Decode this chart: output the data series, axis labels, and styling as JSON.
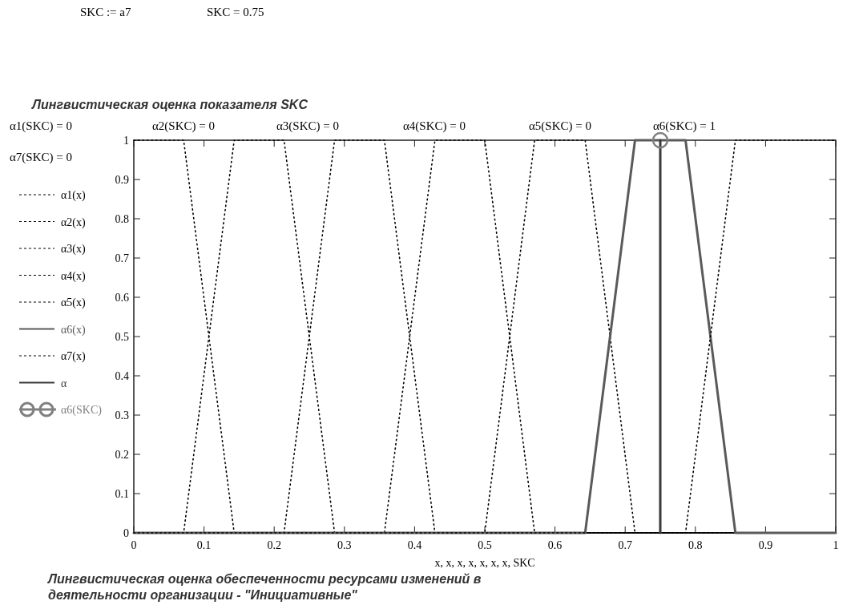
{
  "chart_data": {
    "type": "line",
    "title": "Лингвистическая оценка показателя SKC",
    "xlabel": "x, x, x, x, x, x, x, SKC",
    "annotations": [
      "SKC := a7",
      "SKC = 0.75",
      "α1(SKC) = 0",
      "α2(SKC) = 0",
      "α3(SKC) = 0",
      "α4(SKC) = 0",
      "α5(SKC) = 0",
      "α6(SKC) = 1",
      "α7(SKC) = 0",
      "Лингвистическая оценка обеспеченности ресурсами изменений в деятельности организации - \"Инициативные\""
    ],
    "xlim": [
      0,
      1
    ],
    "xticks": [
      0,
      0.1,
      0.2,
      0.3,
      0.4,
      0.5,
      0.6,
      0.7,
      0.8,
      0.9,
      1
    ],
    "ylim": [
      0,
      1
    ],
    "yticks": [
      0,
      0.1,
      0.2,
      0.3,
      0.4,
      0.5,
      0.6,
      0.7,
      0.8,
      0.9,
      1
    ],
    "grid": false,
    "legend": "left",
    "series": [
      {
        "name": "α1(x)",
        "color": "#000000",
        "line_style": "dotted",
        "x": [
          0,
          0.071,
          0.143,
          1
        ],
        "values": [
          1,
          1,
          0,
          0
        ]
      },
      {
        "name": "α2(x)",
        "color": "#000000",
        "line_style": "dotted",
        "x": [
          0,
          0.071,
          0.143,
          0.214,
          0.286,
          1
        ],
        "values": [
          0,
          0,
          1,
          1,
          0,
          0
        ]
      },
      {
        "name": "α3(x)",
        "color": "#000000",
        "line_style": "dotted",
        "x": [
          0,
          0.214,
          0.286,
          0.357,
          0.429,
          1
        ],
        "values": [
          0,
          0,
          1,
          1,
          0,
          0
        ]
      },
      {
        "name": "α4(x)",
        "color": "#000000",
        "line_style": "dotted",
        "x": [
          0,
          0.357,
          0.429,
          0.5,
          0.571,
          1
        ],
        "values": [
          0,
          0,
          1,
          1,
          0,
          0
        ]
      },
      {
        "name": "α5(x)",
        "color": "#000000",
        "line_style": "dotted",
        "x": [
          0,
          0.5,
          0.571,
          0.643,
          0.714,
          1
        ],
        "values": [
          0,
          0,
          1,
          1,
          0,
          0
        ]
      },
      {
        "name": "α6(x)",
        "color": "#5a5a5a",
        "line_style": "solid",
        "x": [
          0,
          0.643,
          0.714,
          0.786,
          0.857,
          1
        ],
        "values": [
          0,
          0,
          1,
          1,
          0,
          0
        ]
      },
      {
        "name": "α7(x)",
        "color": "#000000",
        "line_style": "dotted",
        "x": [
          0,
          0.786,
          0.857,
          1
        ],
        "values": [
          0,
          0,
          1,
          1
        ]
      },
      {
        "name": "α",
        "color": "#3a3a3a",
        "line_style": "solid",
        "x": [
          0.75,
          0.75
        ],
        "values": [
          0,
          1
        ]
      },
      {
        "name": "α6(SKC)",
        "type": "scatter",
        "marker": "circle",
        "color": "#808080",
        "x": [
          0.75
        ],
        "values": [
          1
        ]
      }
    ]
  }
}
